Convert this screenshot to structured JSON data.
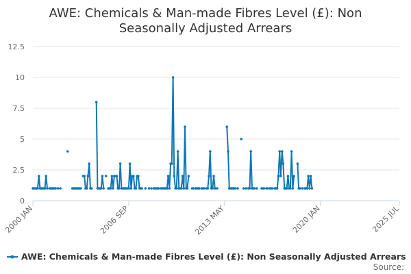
{
  "chart_data": {
    "type": "line",
    "title_lines": [
      "AWE: Chemicals & Man-made Fibres Level (£): Non",
      "Seasonally Adjusted Arrears"
    ],
    "xlabel": "",
    "ylabel": "",
    "x_range": [
      "2000 JAN",
      "2025 JUL"
    ],
    "x_tick_labels": [
      "2000 JAN",
      "2006 SEP",
      "2013 MAY",
      "2020 JAN",
      "2025 JUL"
    ],
    "x_tick_months": [
      0,
      80,
      160,
      240,
      306
    ],
    "ylim": [
      0,
      12.5
    ],
    "y_ticks": [
      0,
      2.5,
      5,
      7.5,
      10,
      12.5
    ],
    "y_tick_labels": [
      "0",
      "2.5",
      "5",
      "7.5",
      "10",
      "12.5"
    ],
    "grid": "horizontal",
    "legend_position": "bottom-left",
    "series": [
      {
        "name": "AWE: Chemicals & Man-made Fibres Level (£): Non Seasonally Adjusted Arrears",
        "color": "#0f77b5",
        "points": [
          [
            0,
            1
          ],
          [
            1,
            1
          ],
          [
            2,
            1
          ],
          [
            3,
            1
          ],
          [
            4,
            1
          ],
          [
            5,
            2
          ],
          [
            6,
            1
          ],
          [
            7,
            1
          ],
          [
            8,
            1
          ],
          [
            9,
            1
          ],
          [
            10,
            1
          ],
          [
            11,
            2
          ],
          [
            12,
            1
          ],
          [
            14,
            1
          ],
          [
            15,
            1
          ],
          [
            16,
            1
          ],
          [
            17,
            1
          ],
          [
            18,
            1
          ],
          [
            19,
            1
          ],
          [
            21,
            1
          ],
          [
            23,
            1
          ],
          [
            29,
            4
          ],
          [
            33,
            1
          ],
          [
            34,
            1
          ],
          [
            35,
            1
          ],
          [
            36,
            1
          ],
          [
            37,
            1
          ],
          [
            38,
            1
          ],
          [
            39,
            1
          ],
          [
            40,
            1
          ],
          [
            42,
            2
          ],
          [
            43,
            2
          ],
          [
            44,
            1
          ],
          [
            45,
            1
          ],
          [
            46,
            2
          ],
          [
            47,
            3
          ],
          [
            48,
            1
          ],
          [
            49,
            1
          ],
          [
            53,
            8
          ],
          [
            54,
            1
          ],
          [
            55,
            1
          ],
          [
            56,
            1
          ],
          [
            57,
            1
          ],
          [
            58,
            2
          ],
          [
            59,
            1
          ],
          [
            61,
            2
          ],
          [
            63,
            1
          ],
          [
            64,
            1
          ],
          [
            65,
            1
          ],
          [
            66,
            2
          ],
          [
            67,
            1
          ],
          [
            68,
            2
          ],
          [
            69,
            2
          ],
          [
            70,
            2
          ],
          [
            71,
            1
          ],
          [
            72,
            1
          ],
          [
            73,
            3
          ],
          [
            74,
            1
          ],
          [
            75,
            1
          ],
          [
            76,
            1
          ],
          [
            77,
            1
          ],
          [
            78,
            1
          ],
          [
            79,
            1
          ],
          [
            80,
            1
          ],
          [
            81,
            3
          ],
          [
            82,
            1
          ],
          [
            83,
            2
          ],
          [
            84,
            2
          ],
          [
            85,
            1
          ],
          [
            86,
            1
          ],
          [
            87,
            2
          ],
          [
            88,
            2
          ],
          [
            89,
            1
          ],
          [
            90,
            1
          ],
          [
            91,
            1
          ],
          [
            94,
            1
          ],
          [
            97,
            1
          ],
          [
            99,
            1
          ],
          [
            101,
            1
          ],
          [
            102,
            1
          ],
          [
            103,
            1
          ],
          [
            104,
            1
          ],
          [
            105,
            1
          ],
          [
            107,
            1
          ],
          [
            108,
            1
          ],
          [
            109,
            1
          ],
          [
            110,
            1
          ],
          [
            111,
            1
          ],
          [
            112,
            1
          ],
          [
            113,
            2
          ],
          [
            114,
            1
          ],
          [
            115,
            3
          ],
          [
            116,
            3
          ],
          [
            117,
            10
          ],
          [
            118,
            2
          ],
          [
            119,
            1
          ],
          [
            120,
            1
          ],
          [
            121,
            4
          ],
          [
            122,
            1
          ],
          [
            123,
            1
          ],
          [
            124,
            1
          ],
          [
            125,
            2
          ],
          [
            126,
            1
          ],
          [
            127,
            6
          ],
          [
            128,
            1
          ],
          [
            129,
            1
          ],
          [
            130,
            2
          ],
          [
            133,
            1
          ],
          [
            134,
            1
          ],
          [
            136,
            1
          ],
          [
            137,
            1
          ],
          [
            138,
            1
          ],
          [
            139,
            1
          ],
          [
            141,
            1
          ],
          [
            142,
            1
          ],
          [
            143,
            1
          ],
          [
            145,
            1
          ],
          [
            146,
            1
          ],
          [
            147,
            2
          ],
          [
            148,
            4
          ],
          [
            149,
            1
          ],
          [
            150,
            1
          ],
          [
            151,
            2
          ],
          [
            152,
            1
          ],
          [
            154,
            1
          ],
          [
            162,
            6
          ],
          [
            163,
            4
          ],
          [
            164,
            1
          ],
          [
            165,
            1
          ],
          [
            166,
            1
          ],
          [
            167,
            1
          ],
          [
            168,
            1
          ],
          [
            169,
            1
          ],
          [
            171,
            1
          ],
          [
            174,
            5
          ],
          [
            176,
            1
          ],
          [
            178,
            1
          ],
          [
            180,
            1
          ],
          [
            181,
            1
          ],
          [
            182,
            4
          ],
          [
            183,
            1
          ],
          [
            184,
            1
          ],
          [
            185,
            1
          ],
          [
            187,
            1
          ],
          [
            191,
            1
          ],
          [
            192,
            1
          ],
          [
            193,
            1
          ],
          [
            195,
            1
          ],
          [
            196,
            1
          ],
          [
            198,
            1
          ],
          [
            199,
            1
          ],
          [
            200,
            1
          ],
          [
            202,
            1
          ],
          [
            203,
            1
          ],
          [
            204,
            1
          ],
          [
            205,
            2
          ],
          [
            206,
            4
          ],
          [
            207,
            2
          ],
          [
            208,
            4
          ],
          [
            209,
            3
          ],
          [
            210,
            1
          ],
          [
            211,
            1
          ],
          [
            212,
            1
          ],
          [
            213,
            2
          ],
          [
            214,
            1
          ],
          [
            215,
            1
          ],
          [
            216,
            4
          ],
          [
            217,
            1
          ],
          [
            218,
            2
          ],
          [
            221,
            3
          ],
          [
            222,
            1
          ],
          [
            223,
            1
          ],
          [
            225,
            1
          ],
          [
            227,
            1
          ],
          [
            228,
            1
          ],
          [
            229,
            1
          ],
          [
            230,
            2
          ],
          [
            231,
            1
          ],
          [
            232,
            2
          ],
          [
            233,
            1
          ]
        ]
      }
    ]
  },
  "legend": {
    "label": "AWE: Chemicals & Man-made Fibres Level (£): Non Seasonally Adjusted Arrears",
    "color": "#0f77b5"
  },
  "source_label": "Source:"
}
